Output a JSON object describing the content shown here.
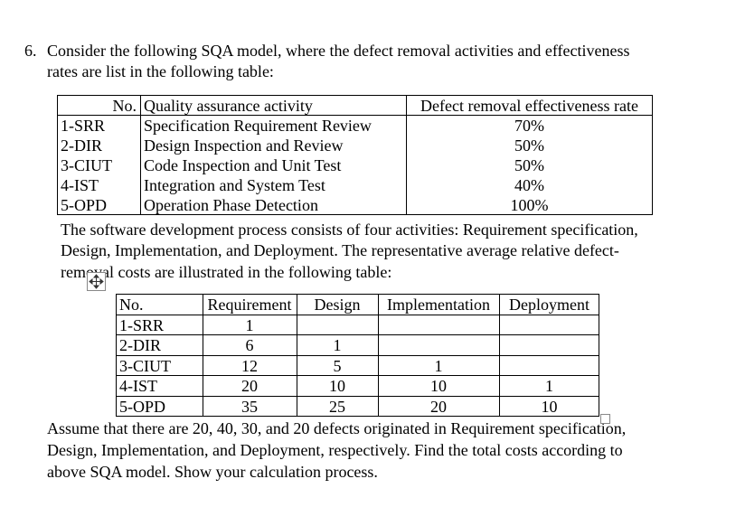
{
  "question": {
    "number": "6.",
    "intro": [
      "Consider the following SQA model, where the defect removal activities and effectiveness",
      "rates are list in the following table:"
    ]
  },
  "table1": {
    "headers": [
      "No.",
      "Quality assurance activity",
      "Defect removal effectiveness rate"
    ],
    "rows": [
      [
        "1-SRR",
        "Specification Requirement Review",
        "70%"
      ],
      [
        "2-DIR",
        "Design Inspection and Review",
        "50%"
      ],
      [
        "3-CIUT",
        "Code Inspection and Unit Test",
        "50%"
      ],
      [
        "4-IST",
        "Integration and System Test",
        "40%"
      ],
      [
        "5-OPD",
        "Operation Phase Detection",
        "100%"
      ]
    ]
  },
  "paragraph2": [
    "The software development process consists of four activities: Requirement specification,",
    "Design, Implementation, and Deployment. The representative average relative defect-",
    "removal costs are illustrated in the following table:"
  ],
  "table2": {
    "headers": [
      "No.",
      "Requirement",
      "Design",
      "Implementation",
      "Deployment"
    ],
    "rows": [
      [
        "1-SRR",
        1,
        null,
        null,
        null
      ],
      [
        "2-DIR",
        6,
        1,
        null,
        null
      ],
      [
        "3-CIUT",
        12,
        5,
        1,
        null
      ],
      [
        "4-IST",
        20,
        10,
        10,
        1
      ],
      [
        "5-OPD",
        35,
        25,
        20,
        10
      ]
    ]
  },
  "paragraph3": [
    "Assume that there are 20, 40, 30, and 20 defects originated in Requirement specification,",
    "Design, Implementation, and Deployment, respectively. Find the total costs according to",
    "above SQA model. Show your calculation process."
  ]
}
